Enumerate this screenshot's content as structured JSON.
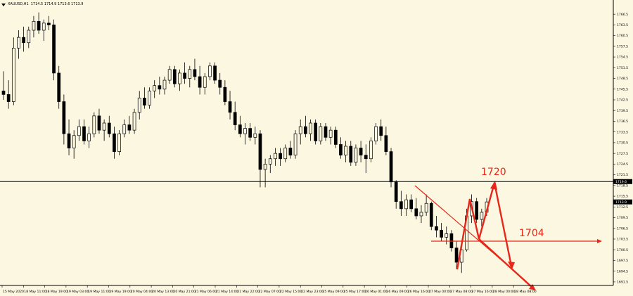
{
  "window": {
    "symbol_timeframe": "XAUUSD,H1",
    "ohlc": "1714.5 1714.9 1713.6 1713.9"
  },
  "colors": {
    "background": "#fbf7e1",
    "candle": "#000000",
    "annotation": "#e8261a",
    "grid_axis": "#000000"
  },
  "chart_data": {
    "type": "candlestick",
    "y_axis_ticks": [
      "1766.5",
      "1763.5",
      "1760.5",
      "1757.5",
      "1754.5",
      "1751.5",
      "1748.5",
      "1745.5",
      "1742.5",
      "1739.5",
      "1736.5",
      "1733.5",
      "1730.5",
      "1727.5",
      "1724.5",
      "1721.5",
      "1718.5",
      "1715.5",
      "1712.5",
      "1709.5",
      "1706.5",
      "1703.5",
      "1700.5",
      "1697.5",
      "1694.5",
      "1691.5"
    ],
    "x_axis_ticks": [
      "15 May 2020",
      "18 May 11:00",
      "18 May 19:00",
      "19 May 03:00",
      "19 May 11:00",
      "19 May 19:00",
      "20 May 04:00",
      "20 May 13:00",
      "20 May 21:00",
      "21 May 06:00",
      "21 May 14:00",
      "21 May 22:00",
      "22 May 07:00",
      "22 May 15:00",
      "22 May 23:00",
      "25 May 09:00",
      "25 May 17:00",
      "26 May 01:00",
      "26 May 09:00",
      "26 May 16:00",
      "27 May 00:00",
      "27 May 08:00",
      "27 May 16:00",
      "28 May 00:00",
      "28 May 08:00"
    ],
    "ylim": [
      1690.5,
      1768.5
    ],
    "horizontal_line": {
      "value": 1719.6,
      "label": "1719.6"
    },
    "current_price": {
      "value": 1713.9,
      "label": "1713.9"
    },
    "annotations": [
      {
        "text": "1720",
        "value": 1720
      },
      {
        "text": "1704",
        "value": 1704
      }
    ],
    "candles": [
      [
        1745.0,
        1750.5,
        1742.5,
        1744.0
      ],
      [
        1744.0,
        1748.0,
        1740.0,
        1742.0
      ],
      [
        1742.0,
        1760.0,
        1741.0,
        1757.0
      ],
      [
        1757.0,
        1762.0,
        1754.0,
        1760.0
      ],
      [
        1760.0,
        1763.0,
        1756.0,
        1758.5
      ],
      [
        1758.5,
        1763.0,
        1757.0,
        1762.0
      ],
      [
        1762.0,
        1766.0,
        1760.0,
        1764.5
      ],
      [
        1764.5,
        1767.0,
        1761.0,
        1762.0
      ],
      [
        1762.0,
        1765.0,
        1759.0,
        1764.0
      ],
      [
        1764.0,
        1766.0,
        1762.0,
        1763.5
      ],
      [
        1763.5,
        1765.0,
        1748.0,
        1750.0
      ],
      [
        1750.0,
        1752.0,
        1740.0,
        1742.0
      ],
      [
        1742.0,
        1744.0,
        1730.0,
        1733.0
      ],
      [
        1733.0,
        1737.0,
        1727.0,
        1729.0
      ],
      [
        1729.0,
        1734.0,
        1726.0,
        1732.5
      ],
      [
        1732.5,
        1737.0,
        1731.0,
        1735.0
      ],
      [
        1735.0,
        1737.0,
        1730.0,
        1731.0
      ],
      [
        1731.0,
        1735.0,
        1729.0,
        1733.0
      ],
      [
        1733.0,
        1739.0,
        1732.0,
        1738.0
      ],
      [
        1738.0,
        1740.0,
        1733.0,
        1734.0
      ],
      [
        1734.0,
        1737.0,
        1731.0,
        1736.0
      ],
      [
        1736.0,
        1738.0,
        1732.0,
        1733.0
      ],
      [
        1733.0,
        1735.0,
        1726.0,
        1728.0
      ],
      [
        1728.0,
        1734.0,
        1727.0,
        1733.0
      ],
      [
        1733.0,
        1737.0,
        1732.0,
        1735.5
      ],
      [
        1735.5,
        1738.0,
        1733.0,
        1734.0
      ],
      [
        1734.0,
        1740.0,
        1733.0,
        1739.0
      ],
      [
        1739.0,
        1745.0,
        1737.0,
        1743.0
      ],
      [
        1743.0,
        1746.0,
        1740.0,
        1741.0
      ],
      [
        1741.0,
        1746.0,
        1740.0,
        1745.0
      ],
      [
        1745.0,
        1748.0,
        1743.0,
        1746.5
      ],
      [
        1746.5,
        1749.0,
        1744.0,
        1745.5
      ],
      [
        1745.5,
        1749.0,
        1744.0,
        1748.0
      ],
      [
        1748.0,
        1752.0,
        1747.0,
        1751.0
      ],
      [
        1751.0,
        1752.0,
        1746.0,
        1747.0
      ],
      [
        1747.0,
        1751.0,
        1745.0,
        1750.0
      ],
      [
        1750.0,
        1753.0,
        1747.0,
        1748.5
      ],
      [
        1748.5,
        1752.0,
        1746.0,
        1751.0
      ],
      [
        1751.0,
        1754.0,
        1748.0,
        1749.0
      ],
      [
        1749.0,
        1752.0,
        1744.0,
        1746.0
      ],
      [
        1746.0,
        1750.0,
        1744.0,
        1749.0
      ],
      [
        1749.0,
        1753.0,
        1748.0,
        1752.0
      ],
      [
        1752.0,
        1753.0,
        1747.0,
        1748.0
      ],
      [
        1748.0,
        1750.0,
        1744.0,
        1746.0
      ],
      [
        1746.0,
        1748.0,
        1741.0,
        1742.0
      ],
      [
        1742.0,
        1745.0,
        1737.0,
        1739.0
      ],
      [
        1739.0,
        1742.0,
        1734.0,
        1735.5
      ],
      [
        1735.5,
        1738.0,
        1732.0,
        1733.0
      ],
      [
        1733.0,
        1736.0,
        1730.0,
        1734.5
      ],
      [
        1734.5,
        1736.0,
        1731.0,
        1732.0
      ],
      [
        1732.0,
        1735.0,
        1730.0,
        1733.0
      ],
      [
        1733.0,
        1734.0,
        1718.0,
        1723.0
      ],
      [
        1723.0,
        1726.0,
        1718.0,
        1724.5
      ],
      [
        1724.5,
        1727.0,
        1722.0,
        1726.0
      ],
      [
        1726.0,
        1729.0,
        1724.0,
        1727.5
      ],
      [
        1727.5,
        1729.0,
        1724.0,
        1726.0
      ],
      [
        1726.0,
        1730.0,
        1725.0,
        1729.0
      ],
      [
        1729.0,
        1731.0,
        1726.0,
        1727.0
      ],
      [
        1727.0,
        1734.0,
        1726.0,
        1733.0
      ],
      [
        1733.0,
        1737.0,
        1730.0,
        1735.0
      ],
      [
        1735.0,
        1738.0,
        1732.0,
        1733.0
      ],
      [
        1733.0,
        1737.0,
        1731.0,
        1736.0
      ],
      [
        1736.0,
        1737.0,
        1730.0,
        1731.0
      ],
      [
        1731.0,
        1736.0,
        1730.0,
        1735.0
      ],
      [
        1735.0,
        1736.0,
        1731.0,
        1732.0
      ],
      [
        1732.0,
        1735.0,
        1730.0,
        1734.0
      ],
      [
        1734.0,
        1735.0,
        1729.0,
        1730.0
      ],
      [
        1730.0,
        1732.0,
        1726.0,
        1727.0
      ],
      [
        1727.0,
        1731.0,
        1725.0,
        1729.5
      ],
      [
        1729.5,
        1731.0,
        1724.0,
        1725.0
      ],
      [
        1725.0,
        1730.0,
        1724.0,
        1729.0
      ],
      [
        1729.0,
        1731.0,
        1725.0,
        1727.0
      ],
      [
        1727.0,
        1730.0,
        1722.0,
        1726.0
      ],
      [
        1726.0,
        1732.0,
        1725.0,
        1731.0
      ],
      [
        1731.0,
        1736.0,
        1730.0,
        1735.0
      ],
      [
        1735.0,
        1737.0,
        1731.0,
        1732.5
      ],
      [
        1732.5,
        1735.0,
        1727.0,
        1728.0
      ],
      [
        1728.0,
        1729.0,
        1718.0,
        1719.5
      ],
      [
        1719.5,
        1720.0,
        1712.0,
        1714.0
      ],
      [
        1714.0,
        1717.0,
        1710.0,
        1712.0
      ],
      [
        1712.0,
        1716.0,
        1710.0,
        1714.5
      ],
      [
        1714.5,
        1716.0,
        1711.0,
        1712.0
      ],
      [
        1712.0,
        1715.0,
        1709.0,
        1710.0
      ],
      [
        1710.0,
        1713.0,
        1708.0,
        1711.0
      ],
      [
        1711.0,
        1716.0,
        1710.0,
        1713.5
      ],
      [
        1713.5,
        1714.0,
        1706.0,
        1707.0
      ],
      [
        1707.0,
        1710.0,
        1704.0,
        1706.0
      ],
      [
        1706.0,
        1708.0,
        1703.0,
        1704.0
      ],
      [
        1704.0,
        1707.0,
        1702.0,
        1705.0
      ],
      [
        1705.0,
        1706.0,
        1700.0,
        1701.0
      ],
      [
        1701.0,
        1703.0,
        1695.0,
        1697.0
      ],
      [
        1697.0,
        1702.0,
        1694.0,
        1700.5
      ],
      [
        1700.5,
        1712.0,
        1700.0,
        1710.0
      ],
      [
        1710.0,
        1716.0,
        1708.0,
        1714.0
      ],
      [
        1714.0,
        1715.0,
        1708.0,
        1709.0
      ],
      [
        1709.0,
        1712.0,
        1707.0,
        1711.0
      ],
      [
        1711.0,
        1715.0,
        1710.0,
        1713.9
      ]
    ]
  }
}
